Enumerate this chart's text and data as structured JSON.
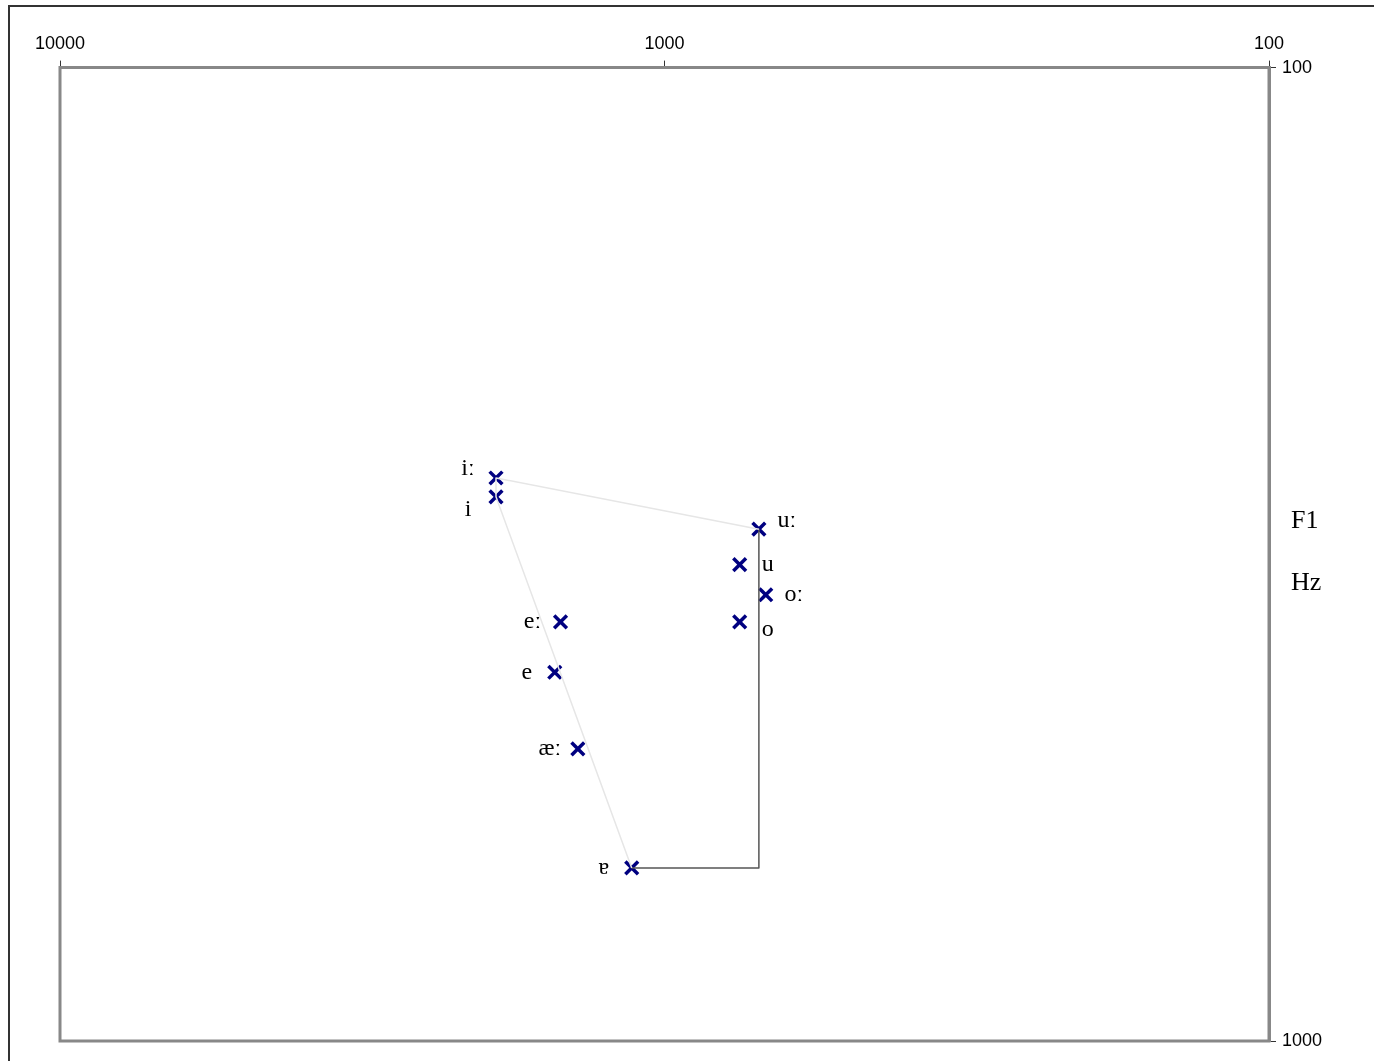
{
  "chart_data": {
    "type": "scatter",
    "ylabel": "F1 Hz",
    "xlim": [
      10000,
      100
    ],
    "xticks": [
      10000,
      1000,
      100
    ],
    "ylim": [
      1000,
      100
    ],
    "yticks": [
      100,
      1000
    ],
    "log": "xy",
    "grid": false,
    "legend": false,
    "series": [
      {
        "type": "line",
        "color": "#e6e6e6",
        "marker": "none",
        "x": [
          1133,
          1900,
          1900,
          698
        ],
        "values": [
          664,
          276,
          264,
          298
        ]
      },
      {
        "type": "line",
        "color": "#555555",
        "marker": "none",
        "x": [
          698,
          698,
          1133
        ],
        "values": [
          298,
          664,
          664
        ]
      },
      {
        "type": "scatter",
        "color": "#000080",
        "marker": "cross",
        "x": [
          1900,
          1900,
          698,
          751,
          680,
          751,
          1486,
          1519,
          1391,
          1133
        ],
        "values": [
          264,
          276,
          298,
          324,
          348,
          371,
          371,
          418,
          501,
          664
        ],
        "value_labels": [
          "iː",
          "i",
          "uː",
          "u",
          "oː",
          "o",
          "eː",
          "e",
          "æː",
          "ɐ"
        ]
      }
    ]
  }
}
